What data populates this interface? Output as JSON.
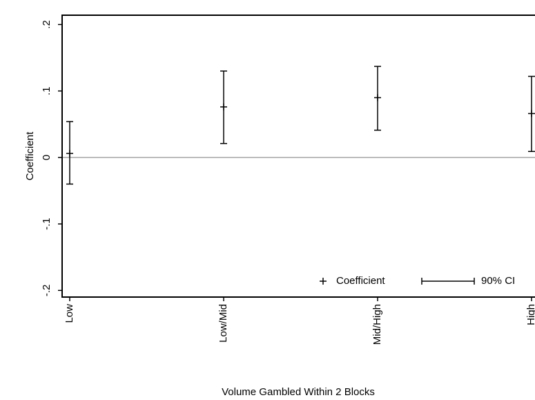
{
  "chart_data": {
    "type": "errorbar",
    "x_label": "Volume Gambled Within 2 Blocks",
    "y_label": "Coefficient",
    "categories": [
      "Low",
      "Low/Mid",
      "Mid/High",
      "High"
    ],
    "series": [
      {
        "name": "Coefficient",
        "color": "#000000",
        "values": [
          0.006,
          0.076,
          0.09,
          0.066
        ]
      },
      {
        "name": "90% CI",
        "color": "#000000",
        "lower": [
          -0.04,
          0.021,
          0.041,
          0.009
        ],
        "upper": [
          0.054,
          0.13,
          0.137,
          0.122
        ]
      }
    ],
    "ylim": [
      -0.21,
      0.214
    ],
    "yticks": [
      {
        "value": -0.2,
        "label": "-.2"
      },
      {
        "value": -0.1,
        "label": "-.1"
      },
      0,
      {
        "value": 0.1,
        "label": ".1"
      },
      {
        "value": 0.2,
        "label": ".2"
      }
    ],
    "reference_line": 0,
    "legend": "bottom-right"
  }
}
